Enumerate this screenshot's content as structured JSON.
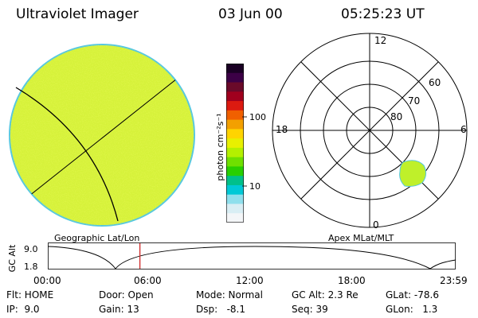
{
  "header": {
    "title": "Ultraviolet Imager",
    "date": "03 Jun 00",
    "time": "05:25:23 UT"
  },
  "colorbar": {
    "label": "photon cm⁻²s⁻¹",
    "ticks": [
      "100",
      "10"
    ],
    "colors": [
      "#1a0024",
      "#3c0046",
      "#6a0a2a",
      "#a0001e",
      "#dc1a10",
      "#f06000",
      "#f3a000",
      "#ffd400",
      "#e8f000",
      "#b4f000",
      "#6fe000",
      "#28cf00",
      "#00c08a",
      "#00c9d6",
      "#8fdfec",
      "#d9eef4",
      "#f4f6f8"
    ]
  },
  "geo_panel": {
    "label": "Geographic Lat/Lon",
    "fill_color": "#d6f23a",
    "rim_color": "#55c7e0"
  },
  "polar_panel": {
    "label": "Apex MLat/MLT",
    "mlt_labels": {
      "top": "12",
      "left": "18",
      "right": "6",
      "bottom": "0"
    },
    "lat_labels": [
      "60",
      "70",
      "80"
    ],
    "spot_color": "#bff02a"
  },
  "timeline": {
    "axis_title": "GC Alt",
    "y_ticks": [
      "9.0",
      "1.8"
    ],
    "x_ticks": [
      "00:00",
      "06:00",
      "12:00",
      "18:00",
      "23:59"
    ],
    "current_time_hours": 5.42,
    "marker_color": "#d03030"
  },
  "info": {
    "row1": [
      "Flt: HOME",
      "Door: Open",
      "Mode: Normal",
      "GC Alt: 2.3 Re",
      "GLat: -78.6"
    ],
    "row2": [
      "IP:  9.0",
      "Gain: 13",
      "Dsp:   -8.1",
      "Seq: 39",
      "GLon:   1.3"
    ]
  }
}
